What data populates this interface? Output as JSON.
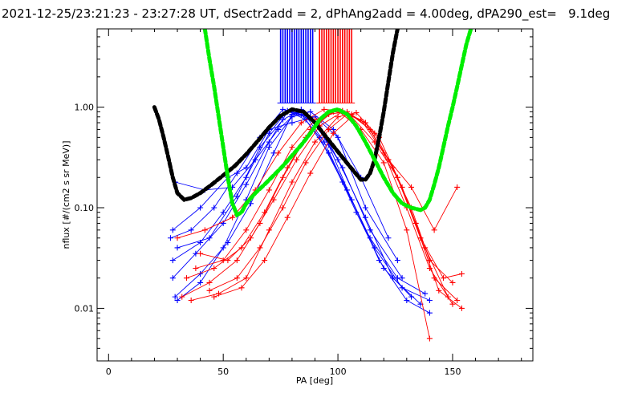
{
  "chart_data": {
    "type": "line",
    "title": "2021-12-25/23:21:23 - 23:27:28 UT, dSectr2add = 2, dPhAng2add = 4.00deg, dPA290_est=   9.1deg",
    "xlabel": "PA [deg]",
    "ylabel": "nflux [#/(cm2 s sr MeV)]",
    "xlim": [
      -5,
      185
    ],
    "ylim_log": [
      0.003,
      6.0
    ],
    "log_y": true,
    "grid": false,
    "x_ticks": [
      {
        "value": 0,
        "label": "0"
      },
      {
        "value": 50,
        "label": "50"
      },
      {
        "value": 100,
        "label": "100"
      },
      {
        "value": 150,
        "label": "150"
      }
    ],
    "y_ticks": [
      {
        "value": 0.01,
        "label": "0.01"
      },
      {
        "value": 0.1,
        "label": "0.10"
      },
      {
        "value": 1.0,
        "label": "1.00"
      }
    ],
    "colors": {
      "blue": "#0000ff",
      "red": "#ff0000",
      "black": "#000000",
      "green": "#00ee00"
    },
    "series": [
      {
        "color": "blue",
        "style": "line-plus",
        "x": [
          29,
          40,
          52,
          62,
          72,
          80,
          88,
          96,
          106,
          118,
          130,
          140
        ],
        "y": [
          0.013,
          0.022,
          0.045,
          0.11,
          0.35,
          0.85,
          0.8,
          0.42,
          0.12,
          0.03,
          0.012,
          0.009
        ]
      },
      {
        "color": "blue",
        "style": "line-plus",
        "x": [
          28,
          38,
          50,
          60,
          70,
          78,
          86,
          94,
          104,
          116,
          128,
          140
        ],
        "y": [
          0.02,
          0.035,
          0.07,
          0.17,
          0.45,
          0.9,
          0.82,
          0.45,
          0.15,
          0.04,
          0.016,
          0.012
        ]
      },
      {
        "color": "blue",
        "style": "line-plus",
        "x": [
          27,
          36,
          46,
          56,
          66,
          76,
          84,
          92,
          102,
          114,
          126,
          138
        ],
        "y": [
          0.05,
          0.06,
          0.1,
          0.22,
          0.5,
          0.95,
          0.85,
          0.5,
          0.18,
          0.05,
          0.02,
          0.014
        ]
      },
      {
        "color": "blue",
        "style": "line-plus",
        "x": [
          28,
          40,
          50,
          60,
          70,
          78,
          86,
          96,
          108,
          120,
          132
        ],
        "y": [
          0.03,
          0.045,
          0.09,
          0.2,
          0.55,
          0.92,
          0.75,
          0.35,
          0.09,
          0.025,
          0.013
        ]
      },
      {
        "color": "blue",
        "style": "line-plus",
        "x": [
          29,
          42,
          54,
          64,
          74,
          82,
          90,
          100,
          112,
          124,
          136
        ],
        "y": [
          0.18,
          0.15,
          0.16,
          0.3,
          0.6,
          0.88,
          0.7,
          0.3,
          0.08,
          0.02,
          0.011
        ]
      },
      {
        "color": "blue",
        "style": "line-plus",
        "x": [
          30,
          40,
          50,
          60,
          70,
          80,
          88,
          98,
          110,
          122
        ],
        "y": [
          0.012,
          0.018,
          0.04,
          0.12,
          0.4,
          0.8,
          0.9,
          0.6,
          0.2,
          0.05
        ]
      },
      {
        "color": "blue",
        "style": "line-plus",
        "x": [
          28,
          40,
          52,
          60,
          70,
          80,
          90,
          100,
          112,
          126
        ],
        "y": [
          0.06,
          0.1,
          0.2,
          0.25,
          0.6,
          0.7,
          0.8,
          0.5,
          0.1,
          0.03
        ]
      },
      {
        "color": "blue",
        "style": "line-plus",
        "x": [
          30,
          44,
          56,
          66,
          76,
          84,
          92,
          102,
          114,
          128
        ],
        "y": [
          0.04,
          0.05,
          0.13,
          0.4,
          0.75,
          0.95,
          0.65,
          0.25,
          0.06,
          0.02
        ]
      },
      {
        "color": "red",
        "style": "line-plus",
        "x": [
          32,
          44,
          56,
          66,
          76,
          86,
          96,
          104,
          114,
          124,
          134,
          142,
          152
        ],
        "y": [
          0.013,
          0.018,
          0.03,
          0.07,
          0.2,
          0.5,
          0.85,
          0.9,
          0.6,
          0.25,
          0.07,
          0.02,
          0.012
        ]
      },
      {
        "color": "red",
        "style": "line-plus",
        "x": [
          34,
          46,
          58,
          68,
          78,
          88,
          98,
          106,
          116,
          126,
          136,
          144,
          154
        ],
        "y": [
          0.02,
          0.025,
          0.04,
          0.09,
          0.25,
          0.6,
          0.9,
          0.85,
          0.55,
          0.2,
          0.05,
          0.015,
          0.01
        ]
      },
      {
        "color": "red",
        "style": "line-plus",
        "x": [
          30,
          42,
          54,
          64,
          74,
          84,
          94,
          102,
          112,
          122,
          132,
          140,
          150
        ],
        "y": [
          0.05,
          0.06,
          0.08,
          0.15,
          0.35,
          0.7,
          0.95,
          0.92,
          0.7,
          0.3,
          0.1,
          0.03,
          0.018
        ]
      },
      {
        "color": "red",
        "style": "line-plus",
        "x": [
          36,
          48,
          60,
          70,
          80,
          90,
          100,
          108,
          118,
          128,
          138,
          148
        ],
        "y": [
          0.012,
          0.014,
          0.02,
          0.06,
          0.18,
          0.45,
          0.8,
          0.88,
          0.5,
          0.16,
          0.04,
          0.013
        ]
      },
      {
        "color": "red",
        "style": "line-plus",
        "x": [
          40,
          52,
          62,
          72,
          82,
          92,
          102,
          110,
          120,
          130,
          140,
          150
        ],
        "y": [
          0.035,
          0.03,
          0.05,
          0.12,
          0.3,
          0.65,
          0.9,
          0.75,
          0.35,
          0.1,
          0.025,
          0.011
        ]
      },
      {
        "color": "red",
        "style": "line-plus",
        "x": [
          44,
          56,
          66,
          76,
          86,
          96,
          104,
          112,
          122,
          132,
          142,
          152
        ],
        "y": [
          0.015,
          0.02,
          0.04,
          0.1,
          0.28,
          0.6,
          0.85,
          0.7,
          0.3,
          0.16,
          0.06,
          0.16
        ]
      },
      {
        "color": "red",
        "style": "line-plus",
        "x": [
          38,
          50,
          60,
          70,
          80,
          90,
          100,
          110,
          120,
          130,
          140
        ],
        "y": [
          0.025,
          0.03,
          0.06,
          0.15,
          0.4,
          0.75,
          0.92,
          0.6,
          0.28,
          0.06,
          0.005
        ]
      },
      {
        "color": "red",
        "style": "line-plus",
        "x": [
          46,
          58,
          68,
          78,
          88,
          98,
          106,
          116,
          126,
          136,
          146,
          154
        ],
        "y": [
          0.013,
          0.016,
          0.03,
          0.08,
          0.22,
          0.55,
          0.8,
          0.45,
          0.2,
          0.05,
          0.02,
          0.022
        ]
      },
      {
        "color": "black",
        "style": "thick-dashed",
        "x": [
          20,
          22,
          24,
          26,
          28,
          30,
          33,
          36,
          40,
          45,
          50,
          55,
          60,
          65,
          70,
          75,
          80,
          85,
          90,
          95,
          100,
          105,
          110,
          112,
          114,
          116,
          118,
          120,
          122,
          124,
          126
        ],
        "y": [
          1.0,
          0.75,
          0.5,
          0.32,
          0.2,
          0.14,
          0.12,
          0.125,
          0.14,
          0.17,
          0.21,
          0.26,
          0.34,
          0.46,
          0.63,
          0.82,
          0.95,
          0.9,
          0.7,
          0.5,
          0.36,
          0.26,
          0.19,
          0.19,
          0.22,
          0.3,
          0.5,
          0.9,
          1.8,
          3.5,
          6.0
        ]
      },
      {
        "color": "green",
        "style": "thick-dashed",
        "x": [
          42,
          44,
          46,
          48,
          50,
          52,
          54,
          56,
          58,
          60,
          64,
          68,
          72,
          76,
          80,
          84,
          88,
          92,
          96,
          100,
          104,
          108,
          112,
          116,
          120,
          124,
          128,
          132,
          136,
          138,
          140,
          142,
          144,
          146,
          148,
          150,
          152,
          154,
          156,
          158
        ],
        "y": [
          6.0,
          3.0,
          1.6,
          0.8,
          0.4,
          0.2,
          0.11,
          0.085,
          0.09,
          0.11,
          0.14,
          0.17,
          0.21,
          0.26,
          0.33,
          0.42,
          0.55,
          0.75,
          0.9,
          0.95,
          0.85,
          0.65,
          0.45,
          0.3,
          0.2,
          0.14,
          0.11,
          0.1,
          0.095,
          0.1,
          0.12,
          0.17,
          0.25,
          0.4,
          0.65,
          1.0,
          1.6,
          2.6,
          4.2,
          6.0
        ]
      }
    ],
    "vertical_markers": [
      {
        "color": "blue",
        "x": [
          75,
          76,
          77,
          78,
          79,
          80,
          81,
          82,
          83,
          84,
          85,
          86,
          87,
          88,
          89
        ],
        "y_top": 6.0,
        "y_bottom": 1.1
      },
      {
        "color": "red",
        "x": [
          92,
          93,
          94,
          95,
          96,
          97,
          98,
          99,
          100,
          101,
          102,
          103,
          104,
          105,
          106
        ],
        "y_top": 6.0,
        "y_bottom": 1.1
      }
    ]
  }
}
